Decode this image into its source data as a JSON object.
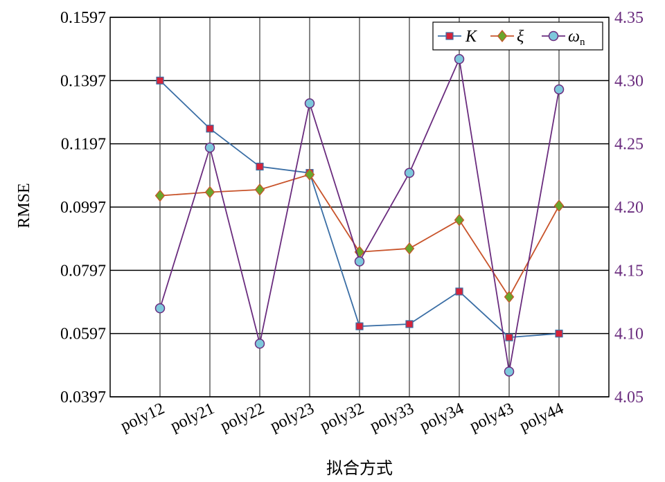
{
  "chart_data": {
    "type": "line",
    "categories": [
      "poly12",
      "poly21",
      "poly22",
      "poly23",
      "poly32",
      "poly33",
      "poly34",
      "poly43",
      "poly44"
    ],
    "xlabel": "拟合方式",
    "ylabel": "RMSE",
    "ylim": [
      0.0397,
      0.1597
    ],
    "yticks": [
      "0.0397",
      "0.0597",
      "0.0797",
      "0.0997",
      "0.1197",
      "0.1397",
      "0.1597"
    ],
    "y2lim": [
      4.05,
      4.35
    ],
    "y2ticks": [
      "4.05",
      "4.10",
      "4.15",
      "4.20",
      "4.25",
      "4.30",
      "4.35"
    ],
    "grid": true,
    "legend_position": "top-right",
    "series": [
      {
        "name": "K",
        "axis": "left",
        "marker": "square",
        "color": "#3a6ea5",
        "marker_fill": "#d6243a",
        "values": [
          0.1397,
          0.1245,
          0.1125,
          0.1105,
          0.062,
          0.0627,
          0.073,
          0.0585,
          0.0597
        ]
      },
      {
        "name": "ξ",
        "axis": "left",
        "marker": "diamond",
        "color": "#c8532a",
        "marker_fill": "#6aa62c",
        "values": [
          0.1033,
          0.1044,
          0.1052,
          0.11,
          0.0855,
          0.0866,
          0.0956,
          0.0713,
          0.1001
        ]
      },
      {
        "name": "ωn",
        "axis": "right",
        "marker": "circle",
        "color": "#6a2c7e",
        "marker_fill": "#7ec8dc",
        "values": [
          4.12,
          4.247,
          4.092,
          4.282,
          4.157,
          4.227,
          4.317,
          4.07,
          4.293
        ]
      }
    ]
  },
  "colors": {
    "right_axis": "#6a2c7e"
  }
}
